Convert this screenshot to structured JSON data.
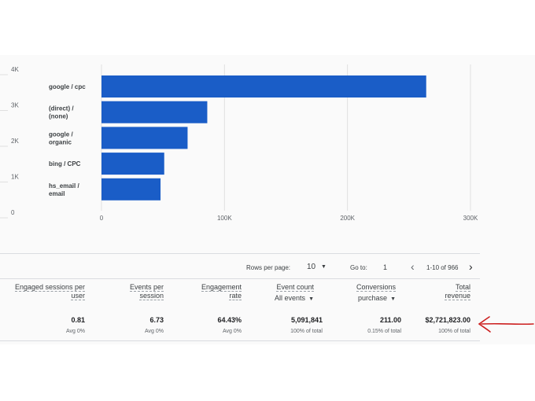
{
  "chart_data": {
    "type": "bar",
    "orientation": "horizontal",
    "categories": [
      "google / cpc",
      "(direct) / (none)",
      "google / organic",
      "bing / CPC",
      "hs_email / email"
    ],
    "category_label_lines": [
      [
        "google / cpc"
      ],
      [
        "(direct) /",
        "(none)"
      ],
      [
        "google /",
        "organic"
      ],
      [
        "bing / CPC"
      ],
      [
        "hs_email /",
        "email"
      ]
    ],
    "values": [
      264000,
      86000,
      70000,
      51000,
      48000
    ],
    "xlim": [
      0,
      300000
    ],
    "x_ticks": [
      "0",
      "100K",
      "200K",
      "300K"
    ],
    "left_axis_ticks": [
      "4K",
      "3K",
      "2K",
      "1K",
      "0"
    ],
    "bar_color": "#1a5dc7",
    "grid": true
  },
  "pager": {
    "rows_per_page_label": "Rows per page:",
    "rows_per_page_value": "10",
    "goto_label": "Go to:",
    "goto_value": "1",
    "range": "1-10 of 966",
    "prev_icon": "chevron-left-icon",
    "next_icon": "chevron-right-icon"
  },
  "metrics": [
    {
      "header": [
        "Engaged sessions per",
        "user"
      ],
      "value": "0.81",
      "sub": "Avg 0%"
    },
    {
      "header": [
        "Events per",
        "session"
      ],
      "value": "6.73",
      "sub": "Avg 0%"
    },
    {
      "header": [
        "Engagement",
        "rate"
      ],
      "value": "64.43%",
      "sub": "Avg 0%"
    },
    {
      "header": [
        "Event count"
      ],
      "selector": "All events",
      "value": "5,091,841",
      "sub": "100% of total"
    },
    {
      "header": [
        "Conversions"
      ],
      "selector": "purchase",
      "value": "211.00",
      "sub": "0.15% of total"
    },
    {
      "header": [
        "Total",
        "revenue"
      ],
      "value": "$2,721,823.00",
      "sub": "100% of total"
    }
  ],
  "annotation": {
    "type": "hand-drawn-arrow",
    "color": "#cc1f1f",
    "points_to": "Total revenue"
  }
}
